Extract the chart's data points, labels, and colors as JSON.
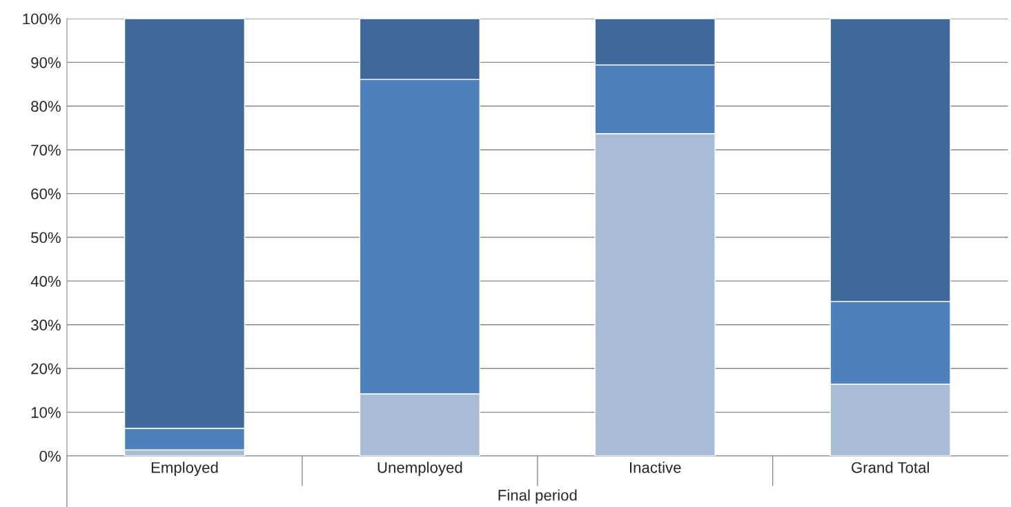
{
  "chart_data": {
    "type": "bar",
    "stacked": true,
    "xlabel": "Final period",
    "categories": [
      "Employed",
      "Unemployed",
      "Inactive",
      "Grand Total"
    ],
    "series": [
      {
        "color": "#aabbd8",
        "values": [
          1.4,
          14.2,
          73.7,
          16.4
        ]
      },
      {
        "color": "#4f81bd",
        "values": [
          4.9,
          71.9,
          15.7,
          18.9
        ]
      },
      {
        "color": "#406a9c",
        "values": [
          93.7,
          13.9,
          10.6,
          64.7
        ]
      }
    ],
    "ylim": [
      0,
      100
    ],
    "yticks": [
      {
        "value": 0,
        "label": "0%"
      },
      {
        "value": 10,
        "label": "10%"
      },
      {
        "value": 20,
        "label": "20%"
      },
      {
        "value": 30,
        "label": "30%"
      },
      {
        "value": 40,
        "label": "40%"
      },
      {
        "value": 50,
        "label": "50%"
      },
      {
        "value": 60,
        "label": "60%"
      },
      {
        "value": 70,
        "label": "70%"
      },
      {
        "value": 80,
        "label": "80%"
      },
      {
        "value": 90,
        "label": "90%"
      },
      {
        "value": 100,
        "label": "100%"
      }
    ],
    "grid": "y"
  }
}
